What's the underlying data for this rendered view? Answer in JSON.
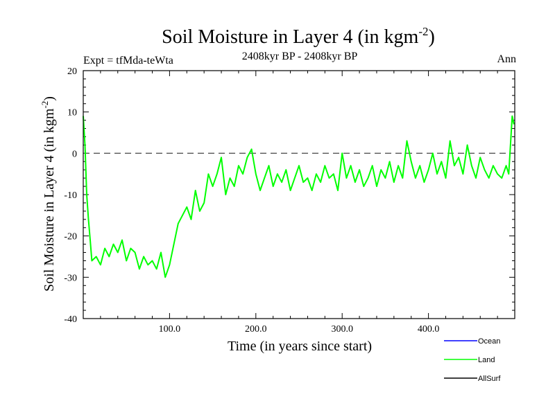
{
  "chart_data": {
    "type": "line",
    "title_main": "Soil Moisture in Layer 4 (in kgm",
    "title_sup": "-2",
    "title_close": ")",
    "subtitle": "2408kyr BP - 2408kyr BP",
    "expt_label": "Expt = tfMda-teWta",
    "period_label": "Ann",
    "xlabel": "Time (in years since start)",
    "ylabel_main": "Soil Moisture in Layer 4 (in kgm",
    "ylabel_sup": "-2",
    "ylabel_close": ")",
    "xlim": [
      0,
      500
    ],
    "ylim": [
      -40,
      20
    ],
    "x_ticks": [
      100,
      200,
      300,
      400
    ],
    "x_tick_labels": [
      "100.0",
      "200.0",
      "300.0",
      "400.0"
    ],
    "y_ticks": [
      -40,
      -30,
      -20,
      -10,
      0,
      10,
      20
    ],
    "y_tick_labels": [
      "-40",
      "-30",
      "-20",
      "-10",
      "0",
      "10",
      "20"
    ],
    "zero_line": 0,
    "legend_position": "bottom-right",
    "series": [
      {
        "name": "Ocean",
        "color": "#0000ff",
        "x": [],
        "values": []
      },
      {
        "name": "Land",
        "color": "#00ff00",
        "x": [
          0,
          2,
          4,
          6,
          8,
          10,
          15,
          20,
          25,
          30,
          35,
          40,
          45,
          50,
          55,
          60,
          65,
          70,
          75,
          80,
          85,
          90,
          95,
          100,
          105,
          110,
          115,
          120,
          125,
          130,
          135,
          140,
          145,
          150,
          155,
          160,
          165,
          170,
          175,
          180,
          185,
          190,
          195,
          200,
          205,
          210,
          215,
          220,
          225,
          230,
          235,
          240,
          245,
          250,
          255,
          260,
          265,
          270,
          275,
          280,
          285,
          290,
          295,
          300,
          305,
          310,
          315,
          320,
          325,
          330,
          335,
          340,
          345,
          350,
          355,
          360,
          365,
          370,
          375,
          380,
          385,
          390,
          395,
          400,
          405,
          410,
          415,
          420,
          425,
          430,
          435,
          440,
          445,
          450,
          455,
          460,
          465,
          470,
          475,
          480,
          485,
          490,
          493,
          495,
          497,
          499
        ],
        "values": [
          9,
          2,
          -10,
          -16,
          -21,
          -26,
          -25,
          -27,
          -23,
          -25,
          -22,
          -24,
          -21,
          -26,
          -23,
          -24,
          -28,
          -25,
          -27,
          -26,
          -28,
          -24,
          -30,
          -27,
          -22,
          -17,
          -15,
          -13,
          -16,
          -9,
          -14,
          -12,
          -5,
          -8,
          -5,
          -1,
          -10,
          -6,
          -8,
          -3,
          -5,
          -1,
          1,
          -5,
          -9,
          -6,
          -3,
          -8,
          -5,
          -7,
          -4,
          -9,
          -6,
          -3,
          -7,
          -6,
          -9,
          -5,
          -7,
          -3,
          -6,
          -5,
          -9,
          0,
          -6,
          -3,
          -7,
          -4,
          -8,
          -6,
          -3,
          -8,
          -4,
          -6,
          -2,
          -7,
          -3,
          -6,
          3,
          -2,
          -6,
          -3,
          -7,
          -4,
          0,
          -5,
          -2,
          -6,
          3,
          -3,
          -1,
          -5,
          2,
          -3,
          -6,
          -1,
          -4,
          -6,
          -3,
          -5,
          -6,
          -3,
          -5,
          2,
          9,
          7
        ]
      },
      {
        "name": "AllSurf",
        "color": "#000000",
        "x": [],
        "values": []
      }
    ]
  }
}
